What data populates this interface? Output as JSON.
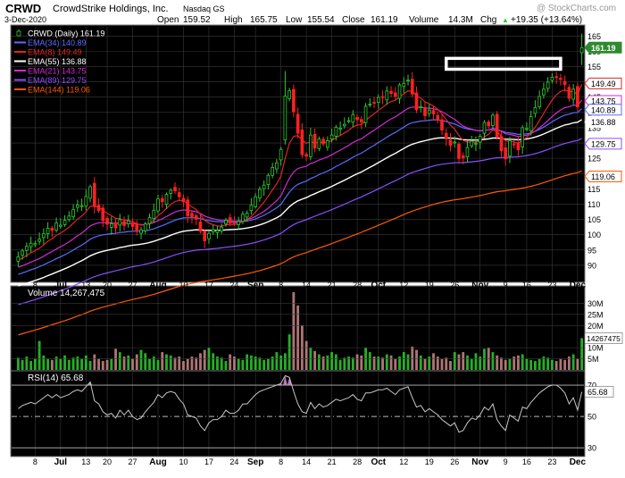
{
  "header": {
    "symbol": "CRWD",
    "company": "CrowdStrike Holdings, Inc.",
    "exchange": "Nasdaq GS",
    "watermark": "@ StockCharts.com",
    "date": "3-Dec-2020",
    "open_label": "Open",
    "open": "159.52",
    "high_label": "High",
    "high": "165.75",
    "low_label": "Low",
    "low": "155.54",
    "close_label": "Close",
    "close": "161.19",
    "volume_label": "Volume",
    "volume": "14.3M",
    "chg_label": "Chg",
    "chg": "+19.35 (+13.64%)",
    "up_arrow": "▲"
  },
  "colors": {
    "background": "#000000",
    "grid": "#3a3a3a",
    "up_candle": "#2ecc2e",
    "down_candle": "#ff2020",
    "ema34": "#5a6cff",
    "ema8": "#e02424",
    "ema55": "#ffffff",
    "ema21": "#d22bd2",
    "ema89": "#8a4fff",
    "ema144": "#ff5a00",
    "volume_bar": "#cc8888",
    "volume_bar_green": "#2ecc2e",
    "rsi_line": "#c8c8c8",
    "highlight_box": "#ffffff"
  },
  "chart_data": [
    {
      "type": "candlestick",
      "title": "CRWD (Daily) 161.19",
      "ylim": [
        85,
        168
      ],
      "y_ticks": [
        90,
        95,
        100,
        105,
        110,
        115,
        120,
        125,
        130,
        135,
        140,
        145,
        150,
        155,
        160,
        165
      ],
      "x_tick_labels": [
        "8",
        "Jul",
        "13",
        "20",
        "27",
        "Aug",
        "10",
        "17",
        "24",
        "Sep",
        "8",
        "14",
        "21",
        "28",
        "Oct",
        "12",
        "19",
        "26",
        "Nov",
        "9",
        "16",
        "23",
        "Dec"
      ],
      "legend": [
        {
          "label": "CRWD (Daily) 161.19",
          "color_key": "up_candle",
          "marker": "candle"
        },
        {
          "label": "EMA(34) 140.89",
          "color_key": "ema34"
        },
        {
          "label": "EMA(8) 149.49",
          "color_key": "ema8"
        },
        {
          "label": "EMA(55) 136.88",
          "color_key": "ema55"
        },
        {
          "label": "EMA(21) 143.75",
          "color_key": "ema21"
        },
        {
          "label": "EMA(89) 129.75",
          "color_key": "ema89"
        },
        {
          "label": "EMA(144) 119.06",
          "color_key": "ema144"
        }
      ],
      "right_value_tags": [
        {
          "value": 161.19,
          "label": "161.19",
          "fill": "#2f8a2f",
          "text_color": "#ffffff"
        },
        {
          "value": 149.49,
          "label": "149.49",
          "fill": "#ffffff",
          "text_color": "#000000",
          "border_key": "ema8"
        },
        {
          "value": 143.75,
          "label": "143.75",
          "fill": "#ffffff",
          "text_color": "#000000",
          "border_key": "ema21"
        },
        {
          "value": 140.89,
          "label": "140.89",
          "fill": "#ffffff",
          "text_color": "#000000",
          "border_key": "ema34"
        },
        {
          "value": 136.88,
          "label": "136.88",
          "fill": "#ffffff",
          "text_color": "#000000",
          "border_key": "ema55"
        },
        {
          "value": 129.75,
          "label": "129.75",
          "fill": "#ffffff",
          "text_color": "#000000",
          "border_key": "ema89"
        },
        {
          "value": 119.06,
          "label": "119.06",
          "fill": "#ffffff",
          "text_color": "#000000",
          "border_key": "ema144"
        }
      ],
      "resistance_box": {
        "low": 155.0,
        "high": 156.8,
        "from_index": 101,
        "to_index": 128
      },
      "closes": [
        92.8,
        94.7,
        96.2,
        97.2,
        97.1,
        98.5,
        100.3,
        102.1,
        101.4,
        103.8,
        103.1,
        104.7,
        106.1,
        108.2,
        109.7,
        109.5,
        112.5,
        115.7,
        109.2,
        107.9,
        104.6,
        103.4,
        103.6,
        102.2,
        104.9,
        103.0,
        104.5,
        102.7,
        101.2,
        101.6,
        103.5,
        105.6,
        108.0,
        111.7,
        110.8,
        113.2,
        114.5,
        114.3,
        112.4,
        110.7,
        106.2,
        105.9,
        105.1,
        101.1,
        98.0,
        100.4,
        101.6,
        101.4,
        102.5,
        104.7,
        103.8,
        103.6,
        104.4,
        106.7,
        107.0,
        109.6,
        112.4,
        114.8,
        116.2,
        119.4,
        122.0,
        123.5,
        127.9,
        145.3,
        147.1,
        140.3,
        133.2,
        126.2,
        125.7,
        132.6,
        128.3,
        131.3,
        129.7,
        130.8,
        132.6,
        135.1,
        134.9,
        136.1,
        137.3,
        139.3,
        137.6,
        136.9,
        142.0,
        142.7,
        143.0,
        144.9,
        144.9,
        147.0,
        146.2,
        145.3,
        149.0,
        149.5,
        150.6,
        146.0,
        140.8,
        141.9,
        138.9,
        140.7,
        139.5,
        137.4,
        134.2,
        131.3,
        129.2,
        130.3,
        124.9,
        125.1,
        128.5,
        130.6,
        129.9,
        132.2,
        136.7,
        135.6,
        139.1,
        131.9,
        127.4,
        124.8,
        130.7,
        129.4,
        127.8,
        135.0,
        134.7,
        138.6,
        141.6,
        145.2,
        147.6,
        149.9,
        151.5,
        151.6,
        150.8,
        149.1,
        144.6,
        147.6,
        141.8,
        161.19
      ],
      "volume": {
        "label": "Volume 14,267,475",
        "ylim": [
          0,
          37
        ],
        "y_ticks": [
          {
            "value": 5,
            "label": "5M"
          },
          {
            "value": 10,
            "label": "10M"
          },
          {
            "value": 20,
            "label": "20M"
          },
          {
            "value": 25,
            "label": "25M"
          },
          {
            "value": 30,
            "label": "30M"
          }
        ],
        "last_tag": "14267475",
        "values_m": [
          5.5,
          4.5,
          6.0,
          4.0,
          5.0,
          13.0,
          6.5,
          5.0,
          4.5,
          6.0,
          5.0,
          6.5,
          4.5,
          5.5,
          6.0,
          5.0,
          6.5,
          4.0,
          7.0,
          5.0,
          4.0,
          4.5,
          5.0,
          9.5,
          8.0,
          6.0,
          6.5,
          5.0,
          7.0,
          9.0,
          7.5,
          5.0,
          6.0,
          4.5,
          8.0,
          7.0,
          6.5,
          5.5,
          6.0,
          4.0,
          5.0,
          6.0,
          5.5,
          7.5,
          9.0,
          10.0,
          7.5,
          6.0,
          5.5,
          4.0,
          7.0,
          6.0,
          5.0,
          4.5,
          7.0,
          6.5,
          6.0,
          5.5,
          4.5,
          5.0,
          6.0,
          8.0,
          6.5,
          7.5,
          16.0,
          35.0,
          29.0,
          20.0,
          13.0,
          10.0,
          8.5,
          7.0,
          6.0,
          6.5,
          8.0,
          7.0,
          4.5,
          5.5,
          6.0,
          5.5,
          7.0,
          6.5,
          10.0,
          8.0,
          6.0,
          6.0,
          5.5,
          7.0,
          6.5,
          5.0,
          6.0,
          8.0,
          7.0,
          10.5,
          9.0,
          6.5,
          5.0,
          6.0,
          7.5,
          6.0,
          5.0,
          5.5,
          4.0,
          8.0,
          7.0,
          8.0,
          6.5,
          5.0,
          7.5,
          6.0,
          9.5,
          10.0,
          8.0,
          6.5,
          5.5,
          4.5,
          5.0,
          6.0,
          6.5,
          7.0,
          5.0,
          4.5,
          4.0,
          5.0,
          6.0,
          5.5,
          4.5,
          4.0,
          5.0,
          4.5,
          6.0,
          7.0,
          5.0,
          14.3
        ]
      },
      "rsi": {
        "label": "RSI(14) 65.68",
        "ylim": [
          25,
          78
        ],
        "y_ticks": [
          30,
          50,
          70
        ],
        "overbought": 70,
        "oversold": 30,
        "midline": 50,
        "last_tag": "65.68",
        "values": [
          55,
          57,
          58,
          59,
          58,
          60,
          62,
          64,
          62,
          64,
          62,
          63,
          64,
          66,
          67,
          66,
          69,
          72,
          60,
          58,
          53,
          51,
          52,
          49,
          54,
          51,
          54,
          50,
          48,
          49,
          53,
          56,
          59,
          64,
          62,
          65,
          66,
          65,
          61,
          58,
          51,
          50,
          49,
          44,
          41,
          46,
          48,
          48,
          50,
          54,
          52,
          52,
          54,
          58,
          58,
          61,
          64,
          66,
          67,
          68,
          69,
          70,
          71,
          76,
          75,
          66,
          58,
          53,
          52,
          59,
          55,
          58,
          56,
          57,
          59,
          61,
          60,
          61,
          62,
          64,
          61,
          60,
          65,
          65,
          66,
          67,
          67,
          68,
          66,
          64,
          67,
          68,
          69,
          62,
          56,
          57,
          53,
          55,
          53,
          51,
          48,
          46,
          44,
          46,
          40,
          41,
          46,
          49,
          48,
          51,
          56,
          54,
          58,
          48,
          44,
          41,
          51,
          49,
          47,
          56,
          55,
          59,
          62,
          65,
          67,
          69,
          70,
          70,
          68,
          65,
          58,
          62,
          54,
          65.68
        ]
      }
    }
  ]
}
